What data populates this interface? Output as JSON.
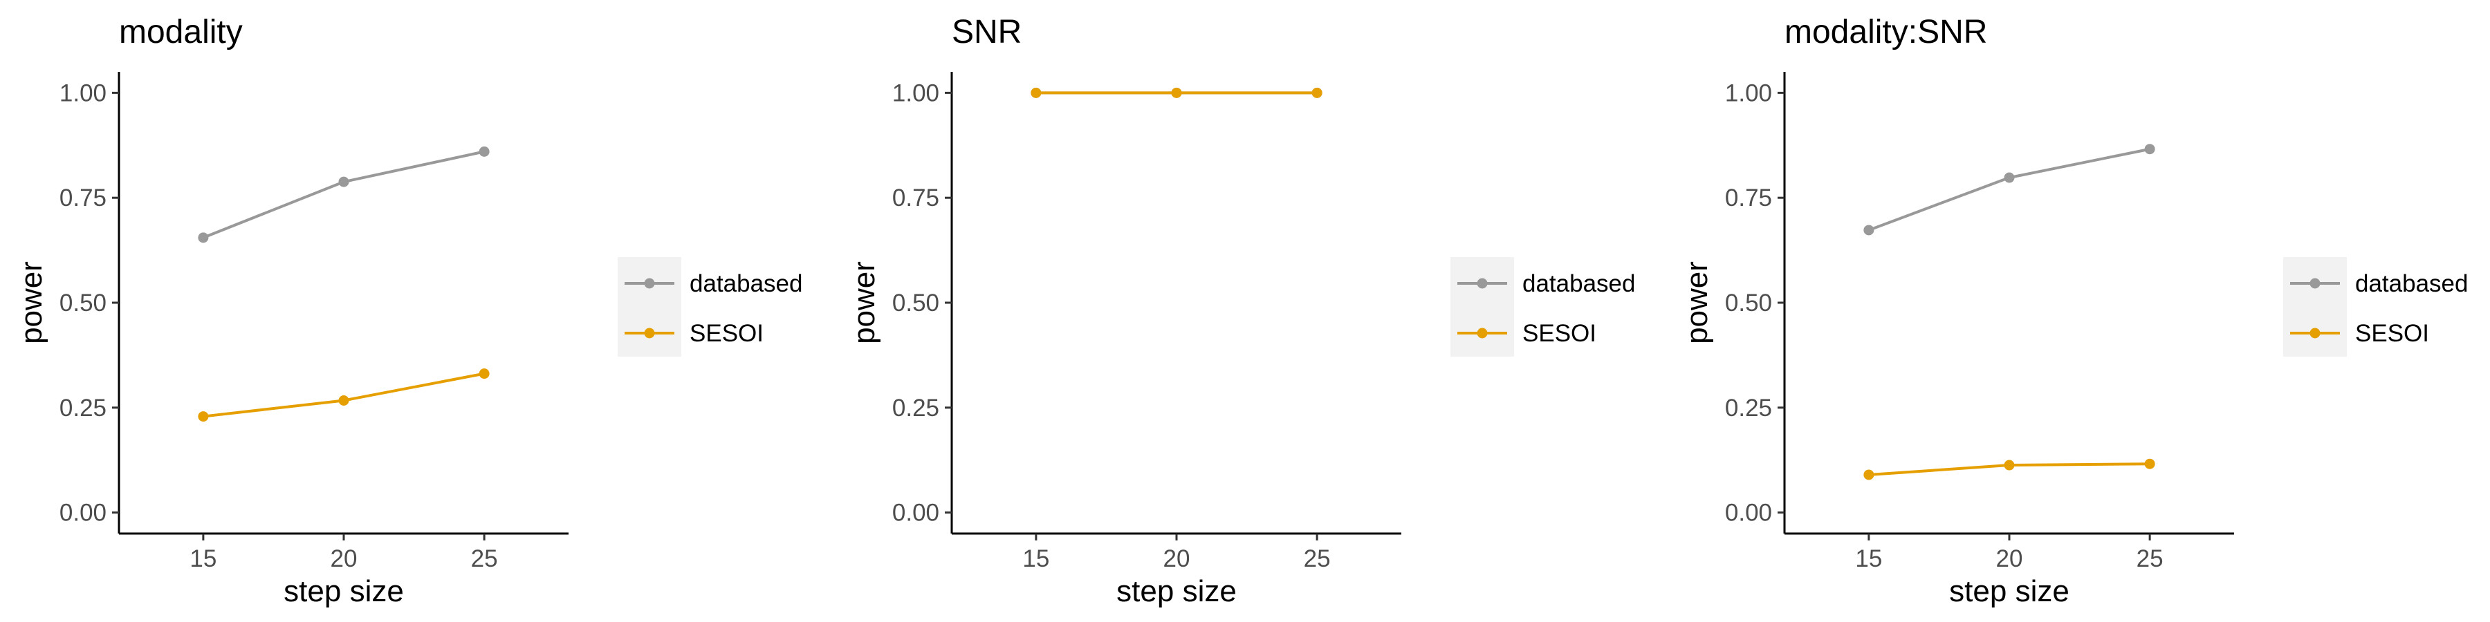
{
  "chart_data": [
    {
      "type": "line",
      "title": "modality",
      "xlabel": "step size",
      "ylabel": "power",
      "x": [
        15,
        20,
        25
      ],
      "xlim": [
        12,
        28
      ],
      "ylim": [
        -0.05,
        1.05
      ],
      "yticks": [
        "0.00",
        "0.25",
        "0.50",
        "0.75",
        "1.00"
      ],
      "xticks": [
        "15",
        "20",
        "25"
      ],
      "grid": false,
      "legend_position": "right",
      "series": [
        {
          "name": "databased",
          "color": "#999999",
          "values": [
            0.655,
            0.788,
            0.86
          ]
        },
        {
          "name": "SESOI",
          "color": "#E69F00",
          "values": [
            0.229,
            0.267,
            0.331
          ]
        }
      ]
    },
    {
      "type": "line",
      "title": "SNR",
      "xlabel": "step size",
      "ylabel": "power",
      "x": [
        15,
        20,
        25
      ],
      "xlim": [
        12,
        28
      ],
      "ylim": [
        -0.05,
        1.05
      ],
      "yticks": [
        "0.00",
        "0.25",
        "0.50",
        "0.75",
        "1.00"
      ],
      "xticks": [
        "15",
        "20",
        "25"
      ],
      "grid": false,
      "legend_position": "right",
      "series": [
        {
          "name": "databased",
          "color": "#999999",
          "values": [
            1.0,
            1.0,
            1.0
          ]
        },
        {
          "name": "SESOI",
          "color": "#E69F00",
          "values": [
            1.0,
            1.0,
            1.0
          ]
        }
      ]
    },
    {
      "type": "line",
      "title": "modality:SNR",
      "xlabel": "step size",
      "ylabel": "power",
      "x": [
        15,
        20,
        25
      ],
      "xlim": [
        12,
        28
      ],
      "ylim": [
        -0.05,
        1.05
      ],
      "yticks": [
        "0.00",
        "0.25",
        "0.50",
        "0.75",
        "1.00"
      ],
      "xticks": [
        "15",
        "20",
        "25"
      ],
      "grid": false,
      "legend_position": "right",
      "series": [
        {
          "name": "databased",
          "color": "#999999",
          "values": [
            0.673,
            0.798,
            0.866
          ]
        },
        {
          "name": "SESOI",
          "color": "#E69F00",
          "values": [
            0.09,
            0.113,
            0.116
          ]
        }
      ]
    }
  ]
}
